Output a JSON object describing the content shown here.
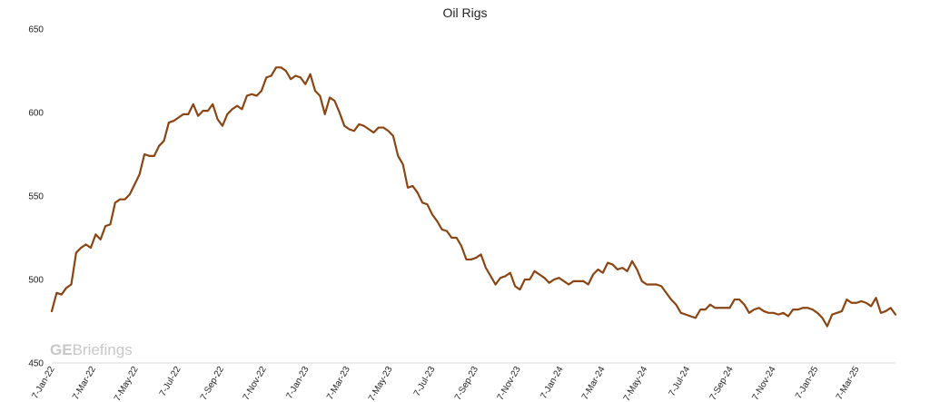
{
  "watermark": {
    "bold": "GE",
    "rest": "Briefings"
  },
  "chart_data": {
    "type": "line",
    "title": "Oil Rigs",
    "xlabel": "",
    "ylabel": "",
    "ylim": [
      450,
      650
    ],
    "yticks": [
      450,
      500,
      550,
      600,
      650
    ],
    "grid": false,
    "legend": "none",
    "line_color": "#8B4513",
    "x_start": "2022-01-07",
    "x_step_weeks": 1,
    "x_tick_labels": [
      "7-Jan-22",
      "7-Mar-22",
      "7-May-22",
      "7-Jul-22",
      "7-Sep-22",
      "7-Nov-22",
      "7-Jan-23",
      "7-Mar-23",
      "7-May-23",
      "7-Jul-23",
      "7-Sep-23",
      "7-Nov-23",
      "7-Jan-24",
      "7-Mar-24",
      "7-May-24",
      "7-Jul-24",
      "7-Sep-24",
      "7-Nov-24",
      "7-Jan-25",
      "7-Mar-25"
    ],
    "series": [
      {
        "values": [
          481,
          492,
          491,
          495,
          497,
          516,
          519,
          521,
          519,
          527,
          524,
          532,
          533,
          546,
          548,
          548,
          551,
          557,
          563,
          575,
          574,
          574,
          580,
          583,
          594,
          595,
          597,
          599,
          599,
          605,
          598,
          601,
          601,
          605,
          596,
          592,
          599,
          602,
          604,
          602,
          610,
          611,
          610,
          613,
          621,
          622,
          627,
          627,
          625,
          620,
          622,
          621,
          617,
          623,
          613,
          610,
          599,
          609,
          607,
          600,
          592,
          590,
          589,
          593,
          592,
          590,
          588,
          591,
          591,
          589,
          586,
          574,
          569,
          555,
          556,
          552,
          546,
          545,
          539,
          535,
          530,
          529,
          525,
          525,
          520,
          512,
          512,
          513,
          515,
          507,
          502,
          497,
          501,
          502,
          504,
          496,
          494,
          500,
          500,
          505,
          503,
          501,
          498,
          500,
          501,
          499,
          497,
          499,
          499,
          499,
          497,
          503,
          506,
          504,
          510,
          509,
          506,
          507,
          505,
          511,
          506,
          499,
          497,
          497,
          497,
          496,
          492,
          488,
          485,
          480,
          479,
          478,
          477,
          482,
          482,
          485,
          483,
          483,
          483,
          483,
          488,
          488,
          485,
          480,
          482,
          483,
          481,
          480,
          480,
          479,
          480,
          478,
          482,
          482,
          483,
          483,
          482,
          480,
          477,
          472,
          479,
          480,
          481,
          488,
          486,
          486,
          487,
          486,
          484,
          489,
          480,
          481,
          483,
          479
        ]
      }
    ]
  }
}
